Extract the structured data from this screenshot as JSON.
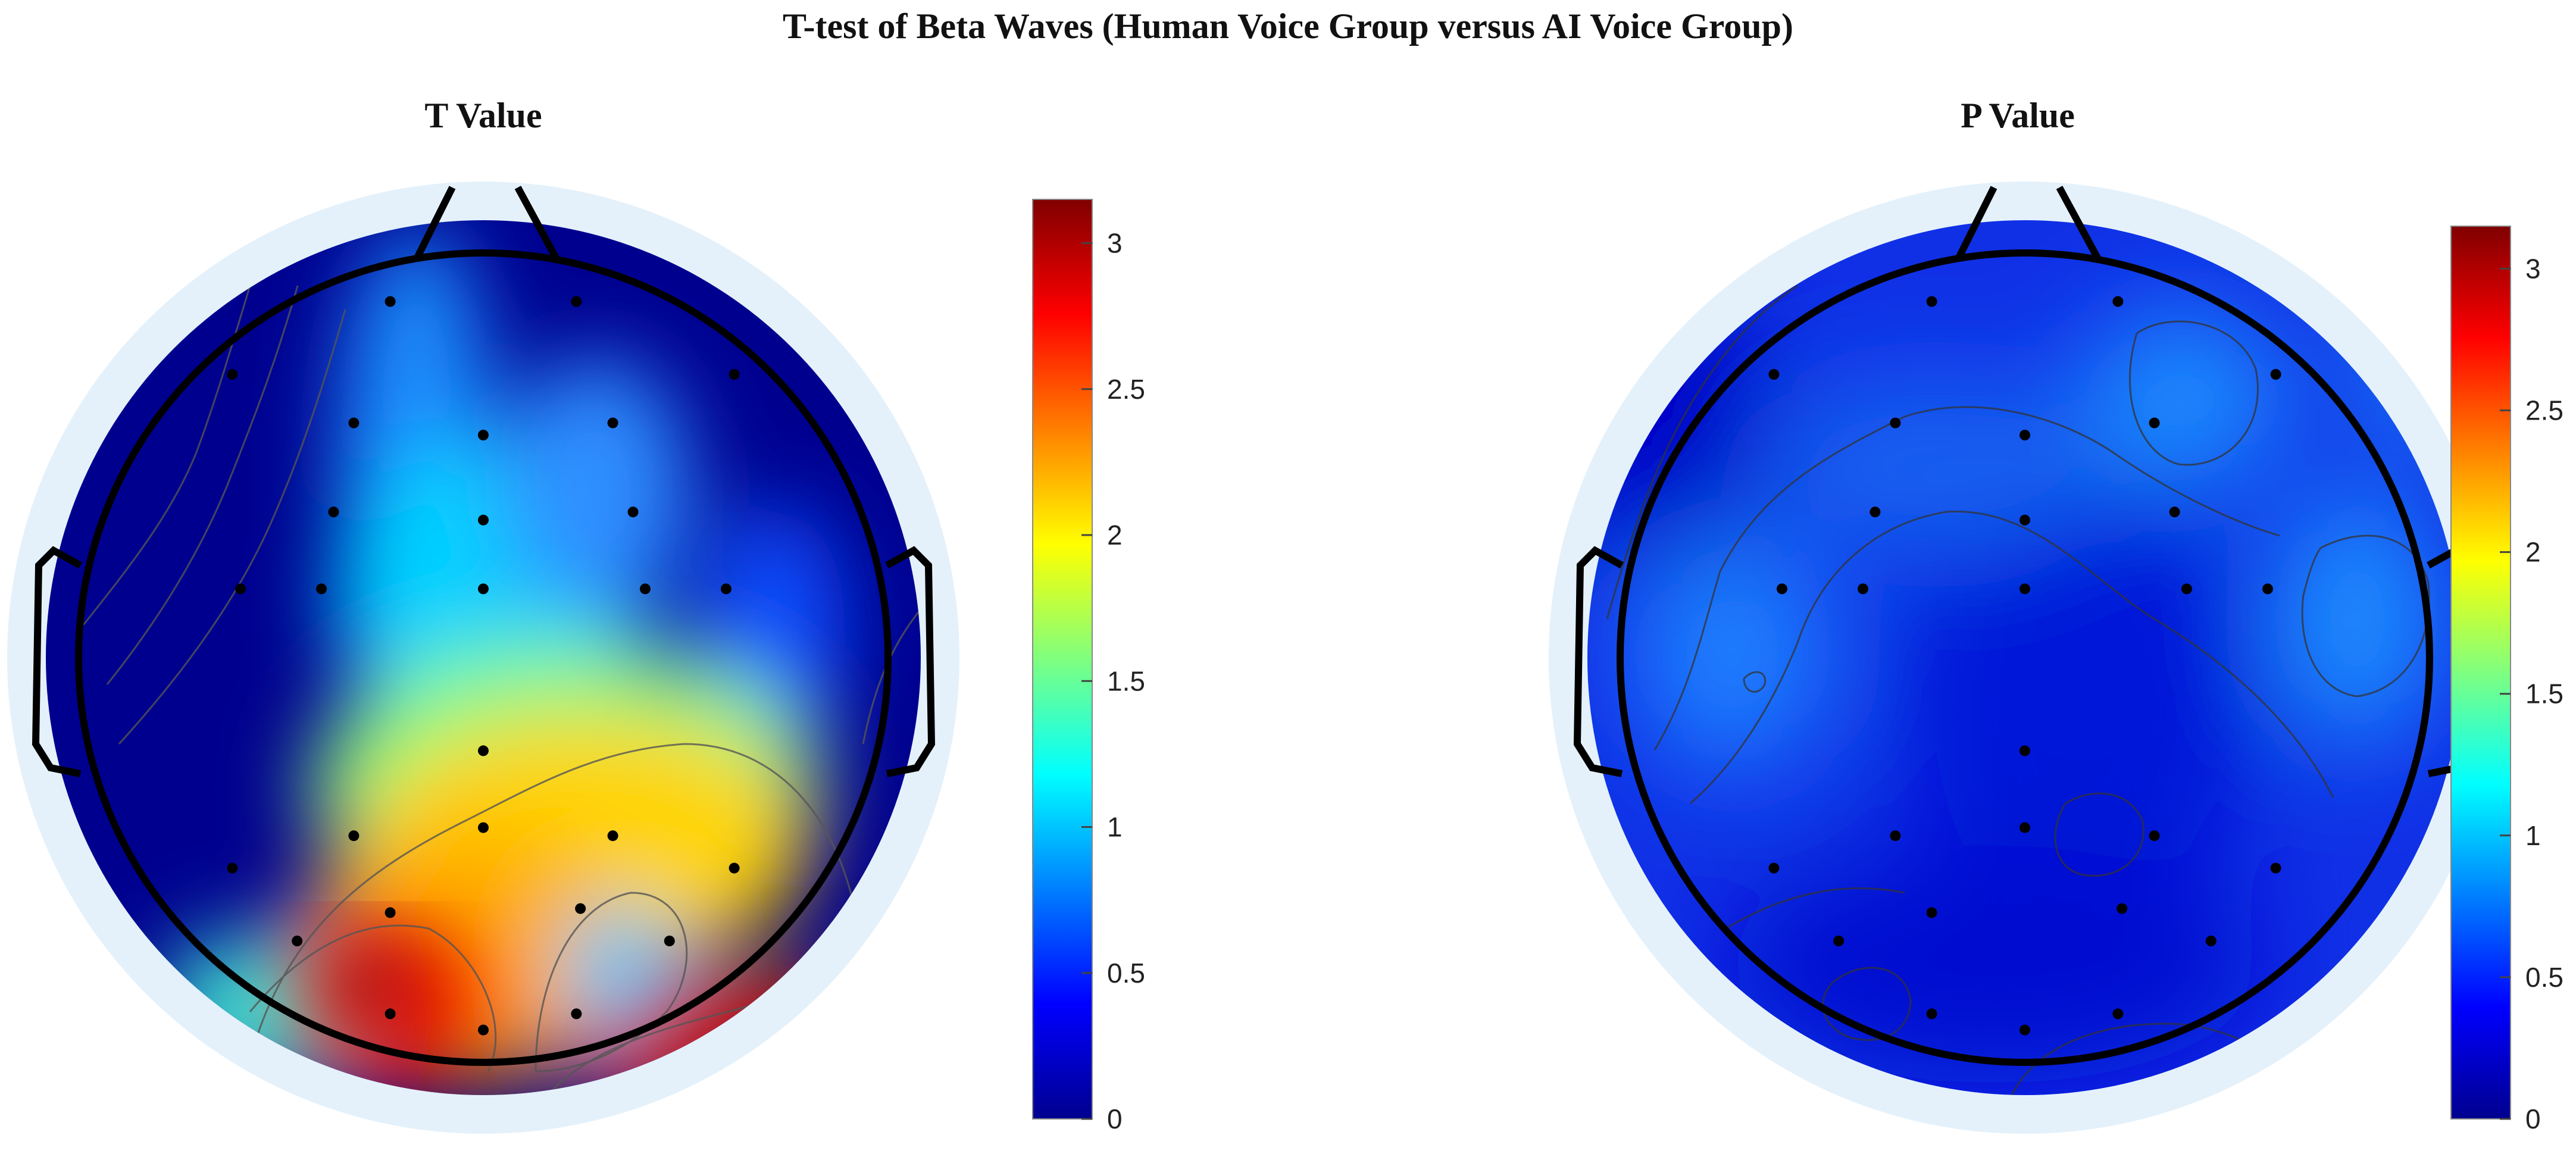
{
  "title": "T-test of Beta Waves (Human Voice Group versus AI Voice Group)",
  "panels": [
    {
      "title": "T Value",
      "colorbar": {
        "ticks": [
          0,
          0.5,
          1,
          1.5,
          2,
          2.5,
          3
        ],
        "labels": [
          "0",
          "0.5",
          "1",
          "1.5",
          "2",
          "2.5",
          "3"
        ],
        "range": [
          0,
          3.15
        ]
      },
      "electrode_count": 30
    },
    {
      "title": "P Value",
      "colorbar": {
        "ticks": [
          0,
          0.5,
          1,
          1.5,
          2,
          2.5,
          3
        ],
        "labels": [
          "0",
          "0.5",
          "1",
          "1.5",
          "2",
          "2.5",
          "3"
        ],
        "range": [
          0,
          3.15
        ]
      },
      "electrode_count": 30
    }
  ],
  "chart_data": [
    {
      "type": "heatmap",
      "subtype": "topographic scalp map",
      "title": "T Value",
      "colormap": "jet",
      "clim": [
        0,
        3.15
      ],
      "description_values": {
        "frontal_midline": 0.8,
        "central_midline": 1.1,
        "parietal_midline": 1.9,
        "left_parietal_occipital_peak": 3.1,
        "right_occipital": 2.9,
        "left_frontal": 0.1,
        "right_frontal": 0.1,
        "left_temporal": 0.1,
        "right_temporal": 0.3
      },
      "grid": false
    },
    {
      "type": "heatmap",
      "subtype": "topographic scalp map",
      "title": "P Value",
      "colormap": "jet",
      "clim": [
        0,
        3.15
      ],
      "description_values": {
        "right_frontal": 0.85,
        "left_temporal": 0.8,
        "right_temporal": 0.8,
        "central": 0.35,
        "parietal": 0.3,
        "occipital": 0.4,
        "left_frontal": 0.2
      },
      "grid": false
    }
  ]
}
